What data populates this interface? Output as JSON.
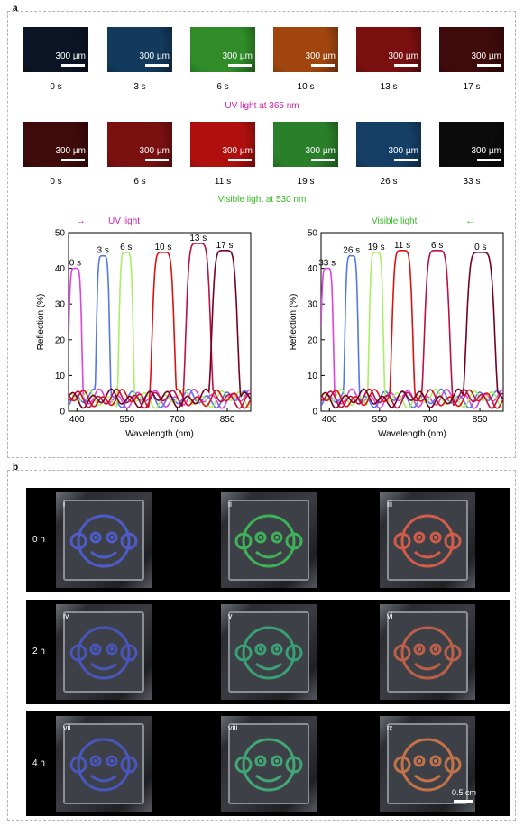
{
  "panel_a": {
    "label": "a",
    "scale_text": "300 µm",
    "uv_row": {
      "caption": "UV light at 365 nm",
      "tiles": [
        {
          "time": "0 s",
          "color": "#0b1424"
        },
        {
          "time": "3 s",
          "color": "#123a5c"
        },
        {
          "time": "6 s",
          "color": "#2f8c28"
        },
        {
          "time": "10 s",
          "color": "#a1450f"
        },
        {
          "time": "13 s",
          "color": "#7a0f10"
        },
        {
          "time": "17 s",
          "color": "#3e0a0a"
        }
      ]
    },
    "vis_row": {
      "caption": "Visible light at 530 nm",
      "tiles": [
        {
          "time": "0 s",
          "color": "#3e0a0a"
        },
        {
          "time": "6 s",
          "color": "#7a1010"
        },
        {
          "time": "11 s",
          "color": "#b0100d"
        },
        {
          "time": "19 s",
          "color": "#2a7f2a"
        },
        {
          "time": "26 s",
          "color": "#143e66"
        },
        {
          "time": "33 s",
          "color": "#0b0b0b"
        }
      ]
    }
  },
  "chart_data": [
    {
      "type": "line",
      "header": "UV light",
      "header_arrow": "→",
      "header_color": "#cc22aa",
      "xlabel": "Wavelength (nm)",
      "ylabel": "Reflection (%)",
      "xlim": [
        375,
        920
      ],
      "ylim": [
        0,
        50
      ],
      "xticks": [
        400,
        550,
        700,
        850
      ],
      "yticks": [
        0,
        10,
        20,
        30,
        40,
        50
      ],
      "series": [
        {
          "name": "0 s",
          "color": "#dd44dd",
          "center": 395,
          "width": 42,
          "peak": 40
        },
        {
          "name": "3 s",
          "color": "#5577ee",
          "center": 478,
          "width": 42,
          "peak": 43.5
        },
        {
          "name": "6 s",
          "color": "#aaee66",
          "center": 547,
          "width": 45,
          "peak": 44.5
        },
        {
          "name": "10 s",
          "color": "#dd1111",
          "center": 658,
          "width": 70,
          "peak": 44.5
        },
        {
          "name": "13 s",
          "color": "#bb1144",
          "center": 763,
          "width": 78,
          "peak": 47
        },
        {
          "name": "17 s",
          "color": "#770022",
          "center": 842,
          "width": 82,
          "peak": 45
        }
      ]
    },
    {
      "type": "line",
      "header": "Visible light",
      "header_arrow": "←",
      "header_color": "#33bb22",
      "xlabel": "Wavelength (nm)",
      "ylabel": "Reflection (%)",
      "xlim": [
        375,
        920
      ],
      "ylim": [
        0,
        50
      ],
      "xticks": [
        400,
        550,
        700,
        850
      ],
      "yticks": [
        0,
        10,
        20,
        30,
        40,
        50
      ],
      "series": [
        {
          "name": "33 s",
          "color": "#dd44dd",
          "center": 393,
          "width": 40,
          "peak": 40
        },
        {
          "name": "26 s",
          "color": "#5577ee",
          "center": 466,
          "width": 42,
          "peak": 43.5
        },
        {
          "name": "19 s",
          "color": "#aaee66",
          "center": 540,
          "width": 45,
          "peak": 44.5
        },
        {
          "name": "11 s",
          "color": "#dd1111",
          "center": 618,
          "width": 66,
          "peak": 45
        },
        {
          "name": "6 s",
          "color": "#bb1144",
          "center": 722,
          "width": 80,
          "peak": 45
        },
        {
          "name": "0 s",
          "color": "#770022",
          "center": 852,
          "width": 90,
          "peak": 44.5
        }
      ]
    }
  ],
  "panel_b": {
    "label": "b",
    "scale_text": "0.5 cm",
    "rows": [
      {
        "label": "0 h",
        "items": [
          {
            "roman": "i",
            "color": "#5060d8"
          },
          {
            "roman": "ii",
            "color": "#3fbf5a"
          },
          {
            "roman": "iii",
            "color": "#e0604a"
          }
        ]
      },
      {
        "label": "2 h",
        "items": [
          {
            "roman": "iv",
            "color": "#4a58c8"
          },
          {
            "roman": "v",
            "color": "#3aaa7a"
          },
          {
            "roman": "vi",
            "color": "#c8644a"
          }
        ]
      },
      {
        "label": "4 h",
        "items": [
          {
            "roman": "vii",
            "color": "#4a5ac8"
          },
          {
            "roman": "viii",
            "color": "#42b07a"
          },
          {
            "roman": "ix",
            "color": "#d0784a"
          }
        ]
      }
    ]
  }
}
